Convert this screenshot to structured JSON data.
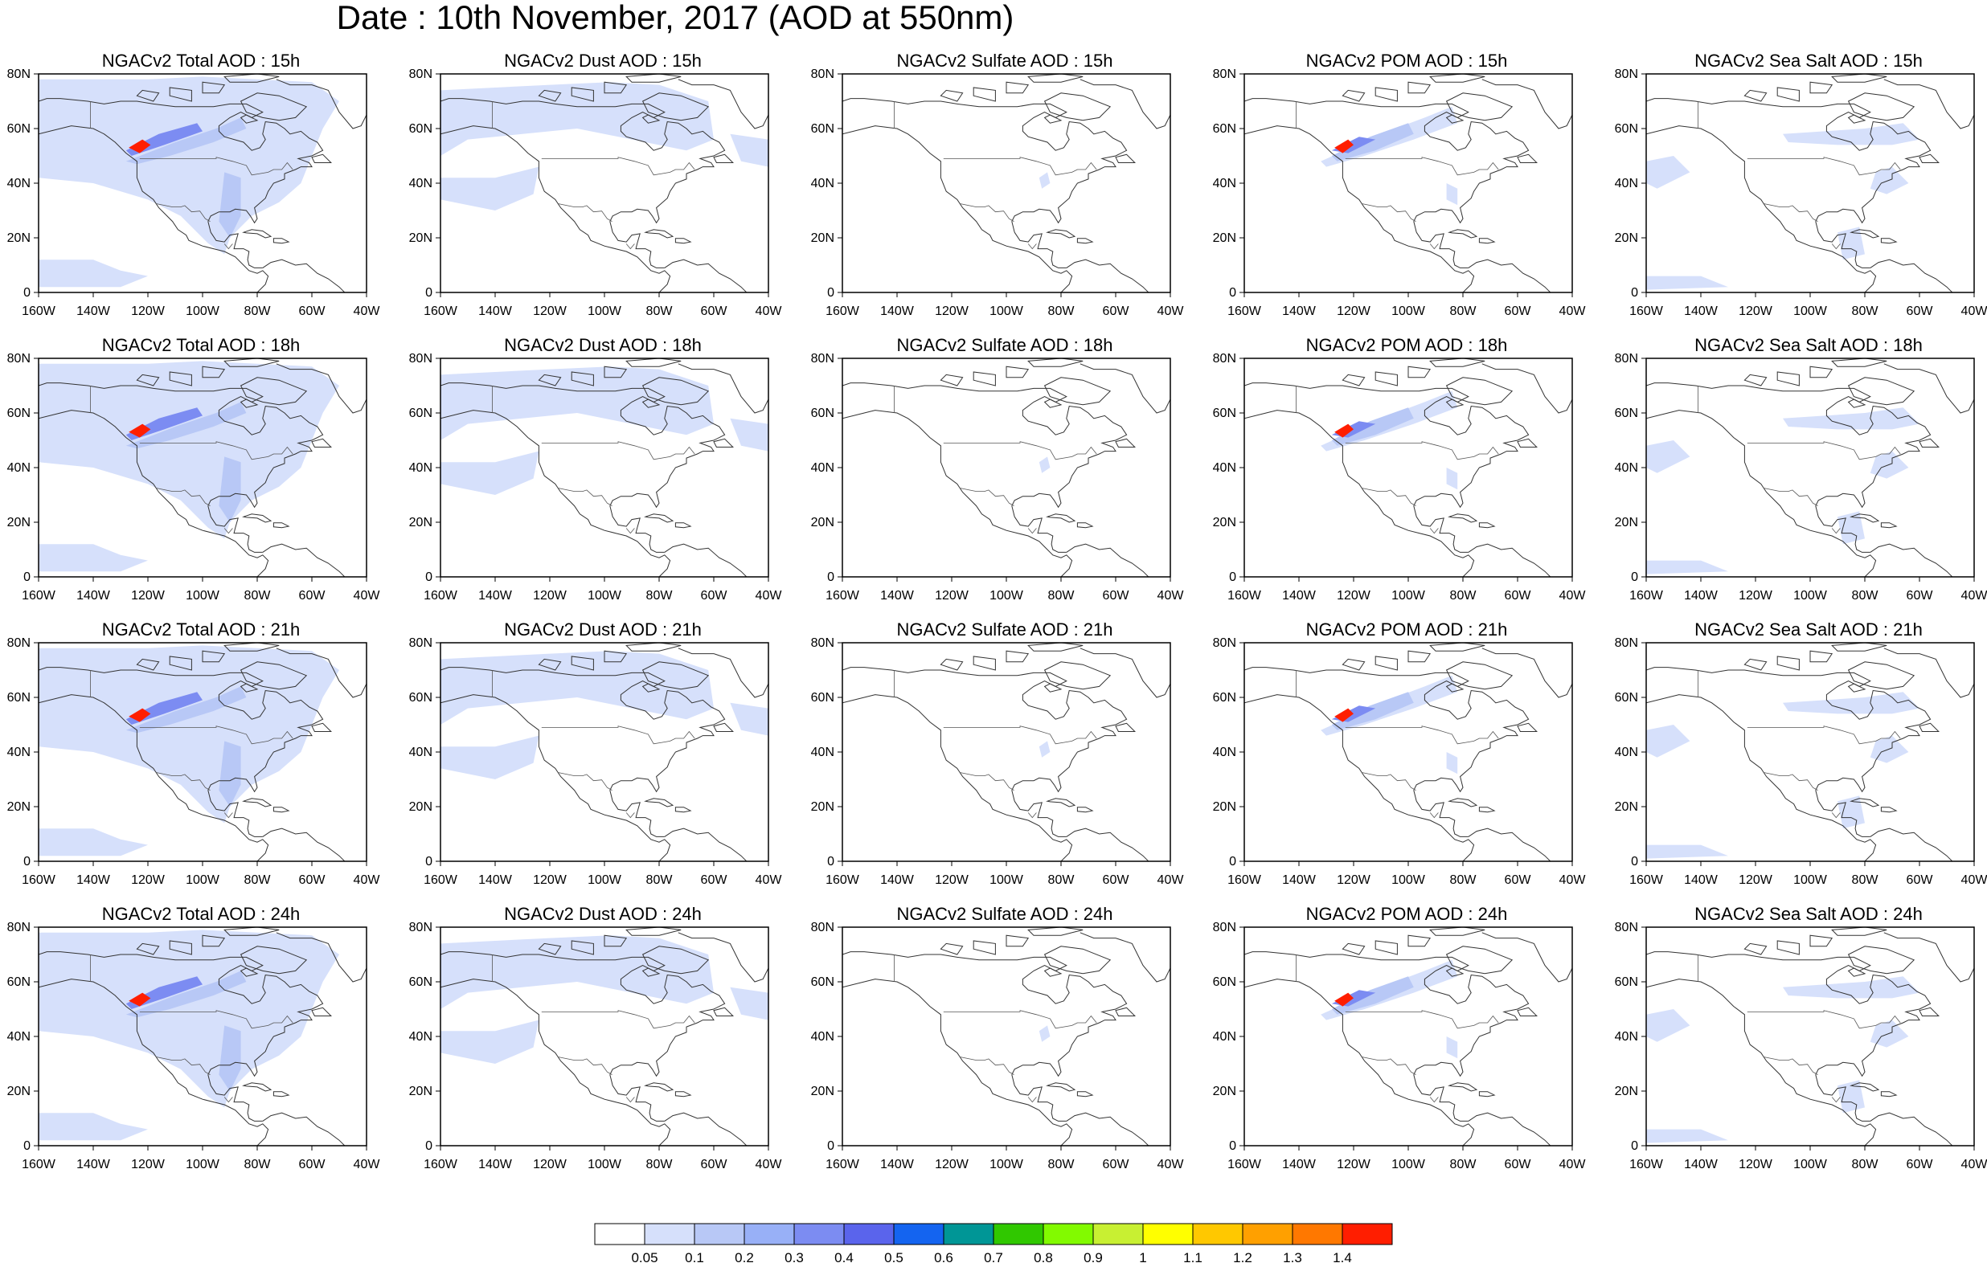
{
  "title": "Date : 10th November, 2017 (AOD at 550nm)",
  "species": [
    {
      "key": "total",
      "label": "NGACv2 Total AOD"
    },
    {
      "key": "dust",
      "label": "NGACv2 Dust AOD"
    },
    {
      "key": "sulfate",
      "label": "NGACv2 Sulfate AOD"
    },
    {
      "key": "pom",
      "label": "NGACv2 POM AOD"
    },
    {
      "key": "seasalt",
      "label": "NGACv2 Sea Salt AOD"
    }
  ],
  "panel_titles": [
    [
      "NGACv2 Total AOD : 15h",
      "NGACv2 Dust AOD : 15h",
      "NGACv2 Sulfate AOD : 15h",
      "NGACv2 POM AOD : 15h",
      "NGACv2 Sea Salt AOD : 15h"
    ],
    [
      "NGACv2 Total AOD : 18h",
      "NGACv2 Dust AOD : 18h",
      "NGACv2 Sulfate AOD : 18h",
      "NGACv2 POM AOD : 18h",
      "NGACv2 Sea Salt AOD : 18h"
    ],
    [
      "NGACv2 Total AOD : 21h",
      "NGACv2 Dust AOD : 21h",
      "NGACv2 Sulfate AOD : 21h",
      "NGACv2 POM AOD : 21h",
      "NGACv2 Sea Salt AOD : 21h"
    ],
    [
      "NGACv2 Total AOD : 24h",
      "NGACv2 Dust AOD : 24h",
      "NGACv2 Sulfate AOD : 24h",
      "NGACv2 POM AOD : 24h",
      "NGACv2 Sea Salt  AOD : 24h"
    ]
  ],
  "map_extent": {
    "lon": [
      -160,
      -40
    ],
    "lat": [
      0,
      80
    ]
  },
  "x_ticks": [
    "160W",
    "140W",
    "120W",
    "100W",
    "80W",
    "60W",
    "40W"
  ],
  "y_ticks": [
    "0",
    "20N",
    "40N",
    "60N",
    "80N"
  ],
  "colorbar": {
    "labels": [
      "0.05",
      "0.1",
      "0.2",
      "0.3",
      "0.4",
      "0.5",
      "0.6",
      "0.7",
      "0.8",
      "0.9",
      "1",
      "1.1",
      "1.2",
      "1.3",
      "1.4"
    ],
    "colors": [
      "#ffffff",
      "#d6e0fb",
      "#b8c8f6",
      "#98b0f7",
      "#7c8cf2",
      "#5a64ec",
      "#1464f0",
      "#009696",
      "#30c800",
      "#82fa00",
      "#c8f032",
      "#ffff00",
      "#ffc800",
      "#ffa000",
      "#ff7800",
      "#ff1e00"
    ]
  },
  "colors": {
    "coastline": "#333333",
    "frame": "#000000",
    "plume_low": "#d6e0fb",
    "plume_mid": "#b8c8f6",
    "plume_high": "#7c8cf2",
    "plume_core": "#ff1e00"
  }
}
